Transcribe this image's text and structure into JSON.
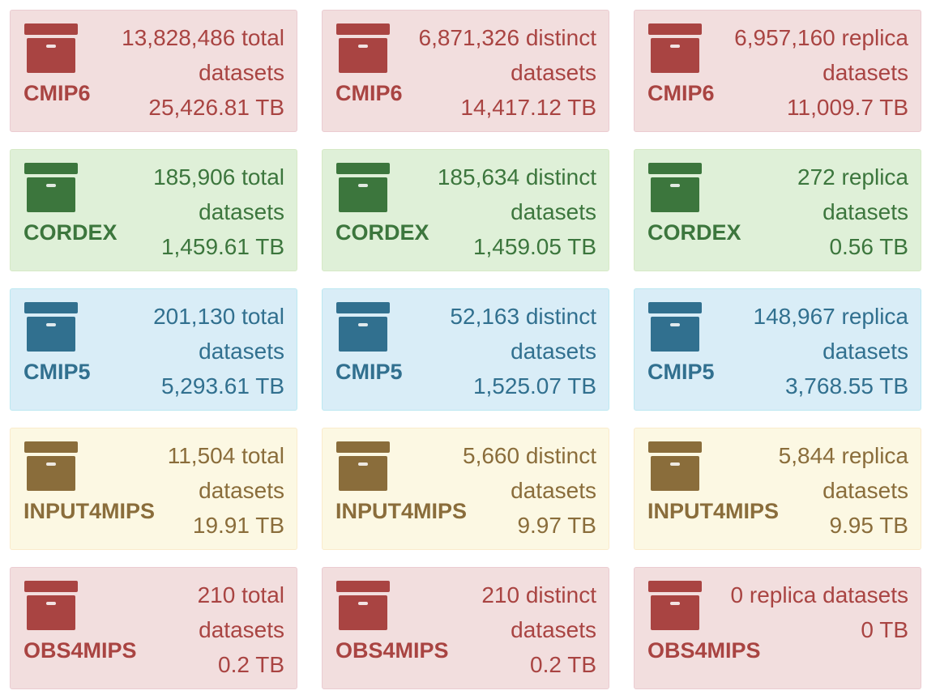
{
  "colors": {
    "red": "#a94442",
    "red_bg": "#f2dede",
    "green": "#3c763d",
    "green_bg": "#dff0d8",
    "blue": "#31708f",
    "blue_bg": "#d9edf7",
    "yellow": "#8a6d3b",
    "yellow_bg": "#fcf8e3"
  },
  "icon": "archive-box-icon",
  "rows": [
    {
      "project": "CMIP6",
      "theme": "red",
      "cards": [
        {
          "line1": "13,828,486 total",
          "line2": "datasets",
          "line3": "25,426.81 TB"
        },
        {
          "line1": "6,871,326 distinct",
          "line2": "datasets",
          "line3": "14,417.12 TB"
        },
        {
          "line1": "6,957,160 replica",
          "line2": "datasets",
          "line3": "11,009.7 TB"
        }
      ]
    },
    {
      "project": "CORDEX",
      "theme": "green",
      "cards": [
        {
          "line1": "185,906 total",
          "line2": "datasets",
          "line3": "1,459.61 TB"
        },
        {
          "line1": "185,634 distinct",
          "line2": "datasets",
          "line3": "1,459.05 TB"
        },
        {
          "line1": "272 replica",
          "line2": "datasets",
          "line3": "0.56 TB"
        }
      ]
    },
    {
      "project": "CMIP5",
      "theme": "blue",
      "cards": [
        {
          "line1": "201,130 total",
          "line2": "datasets",
          "line3": "5,293.61 TB"
        },
        {
          "line1": "52,163 distinct",
          "line2": "datasets",
          "line3": "1,525.07 TB"
        },
        {
          "line1": "148,967 replica",
          "line2": "datasets",
          "line3": "3,768.55 TB"
        }
      ]
    },
    {
      "project": "INPUT4MIPS",
      "theme": "yellow",
      "cards": [
        {
          "line1": "11,504 total",
          "line2": "datasets",
          "line3": "19.91 TB"
        },
        {
          "line1": "5,660 distinct",
          "line2": "datasets",
          "line3": "9.97 TB"
        },
        {
          "line1": "5,844 replica",
          "line2": "datasets",
          "line3": "9.95 TB"
        }
      ]
    },
    {
      "project": "OBS4MIPS",
      "theme": "red",
      "cards": [
        {
          "line1": "210 total",
          "line2": "datasets",
          "line3": "0.2 TB"
        },
        {
          "line1": "210 distinct",
          "line2": "datasets",
          "line3": "0.2 TB"
        },
        {
          "line1": "0 replica datasets",
          "line2": "0 TB",
          "line3": ""
        }
      ]
    }
  ]
}
